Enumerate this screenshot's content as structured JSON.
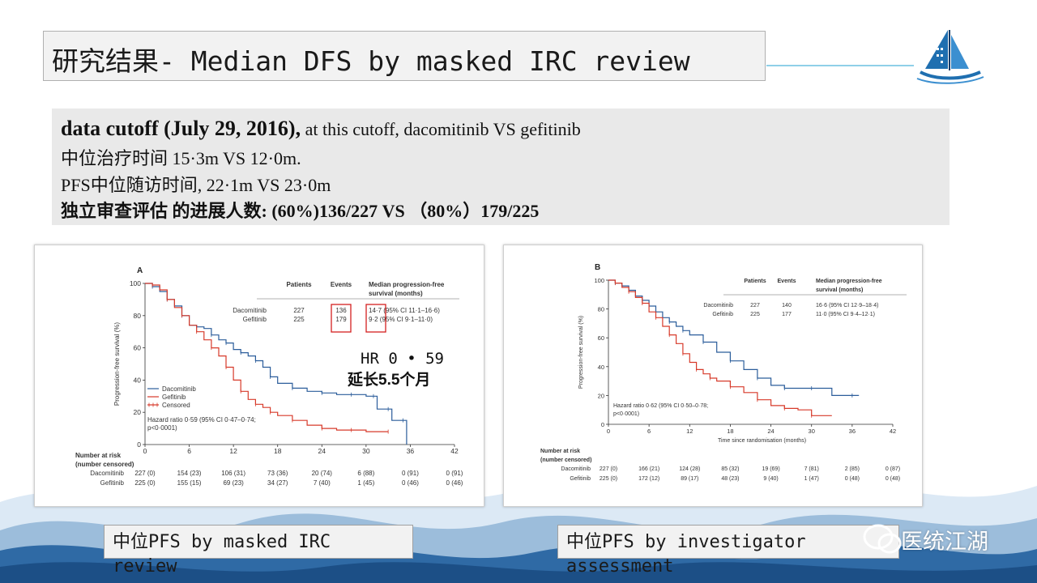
{
  "slide": {
    "title": "研究结果- Median DFS by masked IRC review",
    "info": {
      "line1_bold": "data cutoff (July 29, 2016),",
      "line1_rest": " at this cutoff,  dacomitinib VS gefitinib",
      "line2": "中位治疗时间  15·3m  VS 12·0m.",
      "line3": "PFS中位随访时间, 22·1m VS 23·0m",
      "line4": "独立审查评估 的进展人数:  (60%)136/227 VS （80%）179/225"
    },
    "annotation": {
      "hr": "HR 0 • 59",
      "extension": "延长5.5个月"
    },
    "captions": {
      "a_line1": "中位PFS by masked IRC",
      "a_line2": "review",
      "b_line1": "中位PFS by investigator",
      "b_line2": "assessment"
    },
    "watermark": "医统江湖",
    "colors": {
      "dacomitinib": "#2b5d9b",
      "gefitinib": "#d73a2a",
      "highlight_box": "#d42020",
      "title_bg": "#f2f2f2",
      "info_bg": "#e9e9e9",
      "wave": "#1f5c9a"
    }
  },
  "chart_data": [
    {
      "type": "line",
      "panel": "A",
      "ylabel": "Progression-free survival (%)",
      "xlabel": "",
      "xlim": [
        0,
        42
      ],
      "ylim": [
        0,
        100
      ],
      "xticks": [
        0,
        6,
        12,
        18,
        24,
        30,
        36,
        42
      ],
      "yticks": [
        0,
        20,
        40,
        60,
        80,
        100
      ],
      "legend": [
        "Dacomitinib",
        "Gefitinib",
        "Censored"
      ],
      "table_header": [
        "Patients",
        "Events",
        "Median progression-free survival (months)"
      ],
      "table_rows": [
        {
          "name": "Dacomitinib",
          "patients": "227",
          "events": "136",
          "median": "14·7 (95% CI 11·1–16·6)"
        },
        {
          "name": "Gefitinib",
          "patients": "225",
          "events": "179",
          "median": "9·2 (95% CI 9·1–11·0)"
        }
      ],
      "hazard_text_1": "Hazard ratio 0·59 (95% CI 0·47–0·74;",
      "hazard_text_2": "p<0·0001)",
      "series": [
        {
          "name": "Dacomitinib",
          "color": "#2b5d9b",
          "x": [
            0,
            1,
            2,
            3,
            4,
            5,
            6,
            7,
            8,
            9,
            10,
            11,
            12,
            13,
            14,
            15,
            16,
            17,
            18,
            20,
            22,
            24,
            26,
            28,
            30,
            31,
            31.5,
            33,
            33.5,
            35,
            35.5
          ],
          "y": [
            100,
            98,
            95,
            90,
            86,
            80,
            74,
            73,
            72,
            68,
            65,
            63,
            59,
            57,
            55,
            52,
            48,
            42,
            38,
            35,
            33,
            32,
            31,
            31,
            30,
            30,
            22,
            22,
            15,
            15,
            0
          ]
        },
        {
          "name": "Gefitinib",
          "color": "#d73a2a",
          "x": [
            0,
            1,
            2,
            3,
            4,
            5,
            6,
            7,
            8,
            9,
            10,
            11,
            12,
            13,
            14,
            15,
            16,
            17,
            18,
            20,
            22,
            24,
            26,
            28,
            30,
            33
          ],
          "y": [
            100,
            99,
            96,
            90,
            85,
            80,
            74,
            70,
            65,
            60,
            55,
            48,
            40,
            33,
            28,
            25,
            23,
            20,
            18,
            15,
            12,
            10,
            9,
            9,
            8,
            8
          ]
        }
      ],
      "at_risk": {
        "title_1": "Number at risk",
        "title_2": "(number censored)",
        "rows": [
          {
            "name": "Dacomitinib",
            "values": [
              "227 (0)",
              "154 (23)",
              "106 (31)",
              "73 (36)",
              "20 (74)",
              "6 (88)",
              "0 (91)",
              "0 (91)"
            ]
          },
          {
            "name": "Gefitinib",
            "values": [
              "225 (0)",
              "155 (15)",
              "69 (23)",
              "34 (27)",
              "7 (40)",
              "1 (45)",
              "0 (46)",
              "0 (46)"
            ]
          }
        ]
      }
    },
    {
      "type": "line",
      "panel": "B",
      "ylabel": "Progression-free survival (%)",
      "xlabel": "Time since randomisation (months)",
      "xlim": [
        0,
        42
      ],
      "ylim": [
        0,
        100
      ],
      "xticks": [
        0,
        6,
        12,
        18,
        24,
        30,
        36,
        42
      ],
      "yticks": [
        0,
        20,
        40,
        60,
        80,
        100
      ],
      "legend": [],
      "table_header": [
        "Patients",
        "Events",
        "Median progression-free survival (months)"
      ],
      "table_rows": [
        {
          "name": "Dacomitinib",
          "patients": "227",
          "events": "140",
          "median": "16·6 (95% CI 12·9–18·4)"
        },
        {
          "name": "Gefitinib",
          "patients": "225",
          "events": "177",
          "median": "11·0 (95% CI 9·4–12·1)"
        }
      ],
      "hazard_text_1": "Hazard ratio 0·62 (95% CI 0·50–0·78;",
      "hazard_text_2": "p<0·0001)",
      "series": [
        {
          "name": "Dacomitinib",
          "color": "#2b5d9b",
          "x": [
            0,
            1,
            2,
            3,
            4,
            5,
            6,
            7,
            8,
            9,
            10,
            11,
            12,
            14,
            16,
            18,
            20,
            22,
            24,
            26,
            28,
            30,
            33,
            36,
            37
          ],
          "y": [
            100,
            98,
            96,
            93,
            89,
            86,
            82,
            78,
            74,
            71,
            68,
            65,
            62,
            57,
            50,
            44,
            38,
            32,
            27,
            25,
            25,
            25,
            20,
            20,
            20
          ]
        },
        {
          "name": "Gefitinib",
          "color": "#d73a2a",
          "x": [
            0,
            1,
            2,
            3,
            4,
            5,
            6,
            7,
            8,
            9,
            10,
            11,
            12,
            13,
            14,
            15,
            16,
            18,
            20,
            22,
            24,
            26,
            28,
            30,
            33
          ],
          "y": [
            100,
            98,
            95,
            92,
            88,
            84,
            78,
            74,
            68,
            62,
            56,
            49,
            43,
            38,
            35,
            32,
            30,
            26,
            22,
            17,
            13,
            11,
            10,
            6,
            6
          ]
        }
      ],
      "at_risk": {
        "title_1": "Number at risk",
        "title_2": "(number censored)",
        "rows": [
          {
            "name": "Dacomitinib",
            "values": [
              "227 (0)",
              "166 (21)",
              "124 (28)",
              "85 (32)",
              "19 (69)",
              "7 (81)",
              "2 (85)",
              "0 (87)"
            ]
          },
          {
            "name": "Gefitinib",
            "values": [
              "225 (0)",
              "172 (12)",
              "89 (17)",
              "48 (23)",
              "9 (40)",
              "1 (47)",
              "0 (48)",
              "0 (48)"
            ]
          }
        ]
      }
    }
  ]
}
